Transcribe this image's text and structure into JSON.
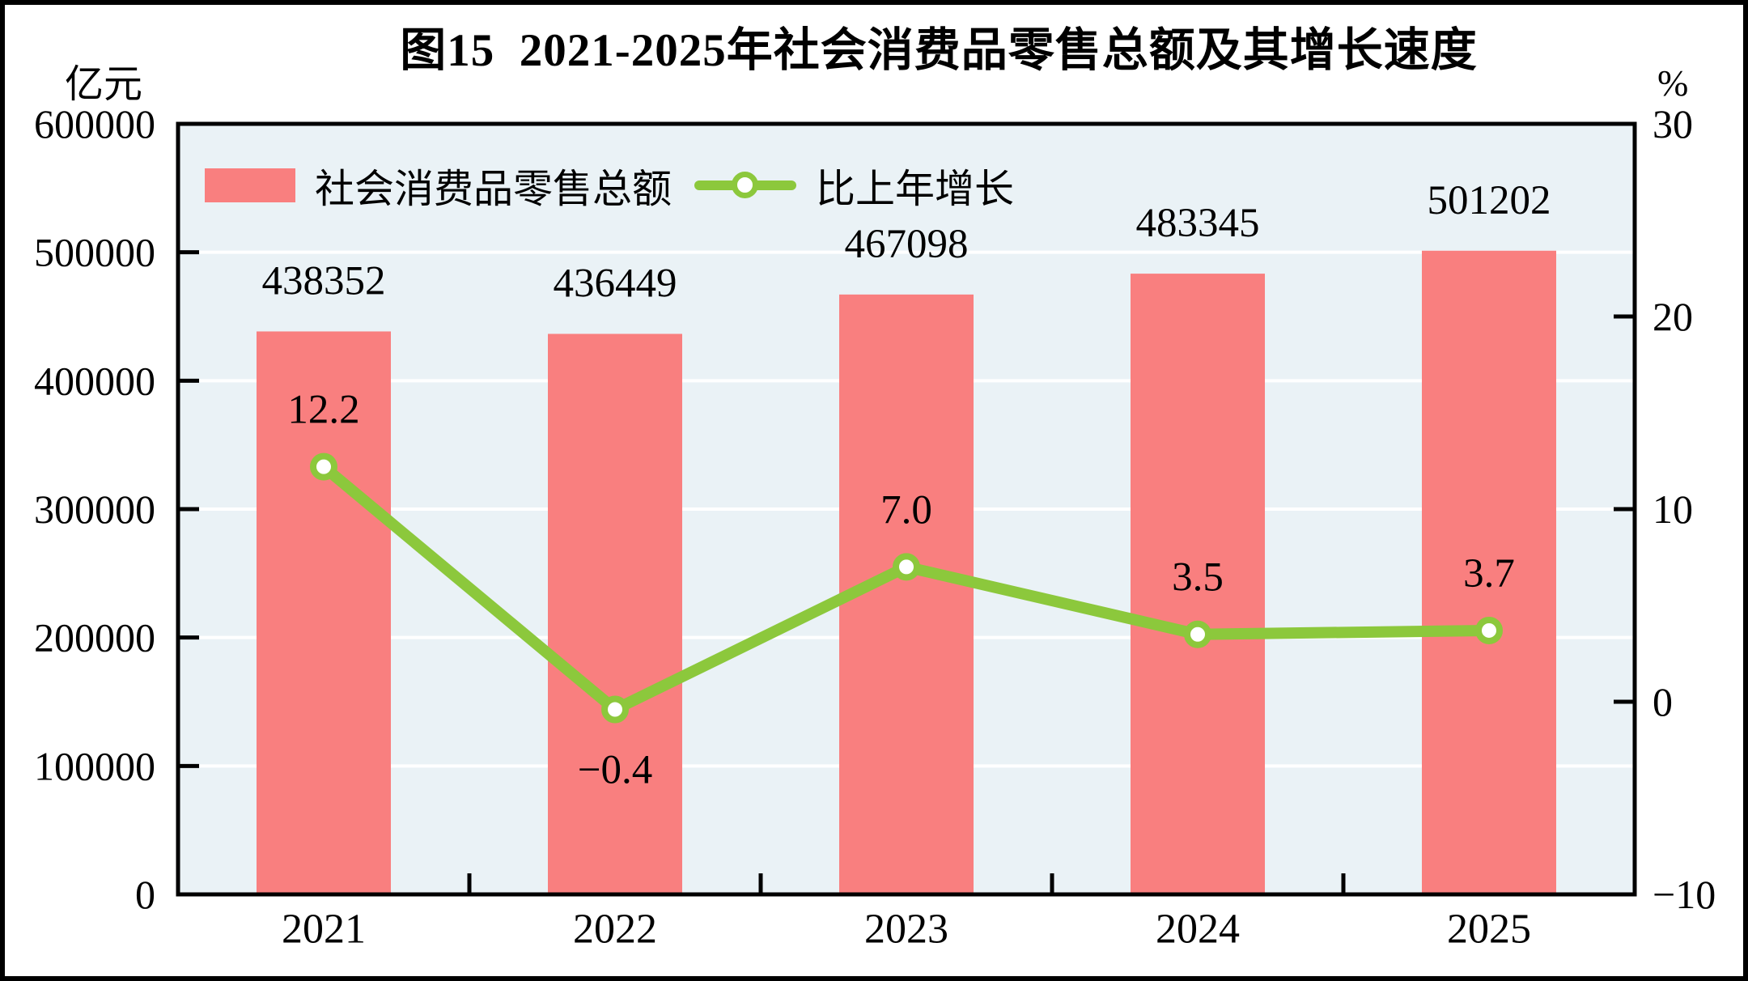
{
  "page": {
    "title": "图15  2021-2025年社会消费品零售总额及其增长速度"
  },
  "chart_data": {
    "type": "bar+line",
    "title": "图15  2021-2025年社会消费品零售总额及其增长速度",
    "categories": [
      "2021",
      "2022",
      "2023",
      "2024",
      "2025"
    ],
    "series": [
      {
        "name": "社会消费品零售总额",
        "type": "bar",
        "axis": "left",
        "unit": "亿元",
        "color": "#F97F7F",
        "values": [
          438352,
          436449,
          467098,
          483345,
          501202
        ],
        "labels": [
          "438352",
          "436449",
          "467098",
          "483345",
          "501202"
        ]
      },
      {
        "name": "比上年增长",
        "type": "line",
        "axis": "right",
        "unit": "%",
        "color": "#8CC83C",
        "marker": "circle-white-fill-green-ring",
        "values": [
          12.2,
          -0.4,
          7.0,
          3.5,
          3.7
        ],
        "labels": [
          "12.2",
          "−0.4",
          "7.0",
          "3.5",
          "3.7"
        ],
        "label_below_index": 1
      }
    ],
    "left_axis": {
      "unit": "亿元",
      "min": 0,
      "max": 600000,
      "tick_step": 100000,
      "tick_labels": [
        "0",
        "100000",
        "200000",
        "300000",
        "400000",
        "500000",
        "600000"
      ]
    },
    "right_axis": {
      "unit": "%",
      "min": -10,
      "max": 30,
      "tick_step": 10,
      "tick_labels": [
        "−10",
        "0",
        "10",
        "20",
        "30"
      ]
    },
    "x_axis": {
      "tick_labels": [
        "2021",
        "2022",
        "2023",
        "2024",
        "2025"
      ]
    },
    "legend_position": "top-left-inside",
    "grid": "horizontal-white",
    "colors": {
      "bar": "#F97F7F",
      "line": "#8CC83C",
      "plot_bg": "#EAF2F6",
      "gridline": "#FFFFFF",
      "frame": "#000000",
      "text": "#000000"
    }
  }
}
